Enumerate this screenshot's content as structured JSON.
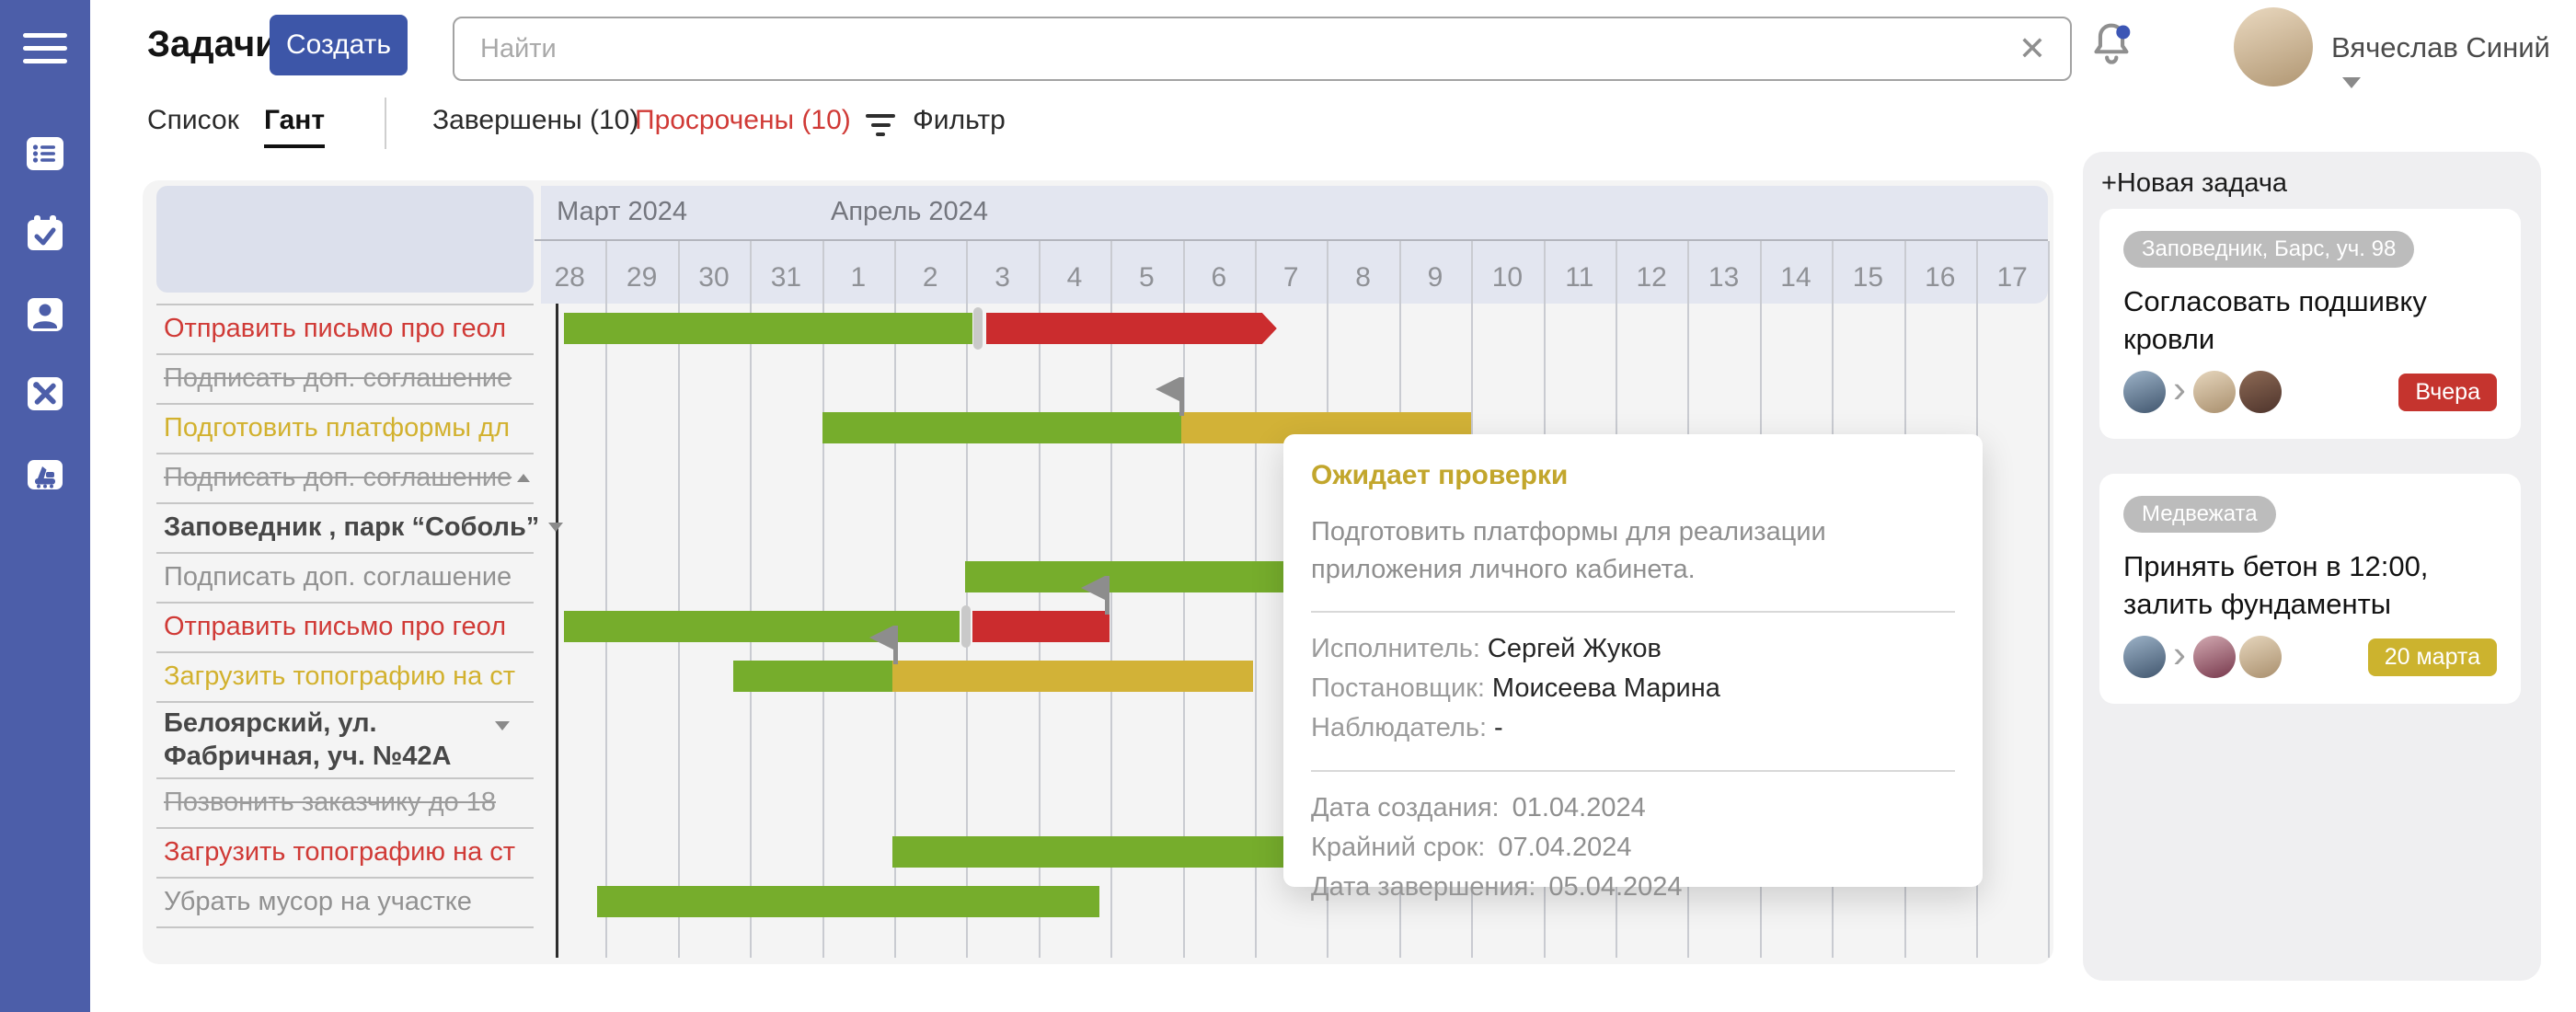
{
  "colors": {
    "sidebar_blue": "#4c5ea9",
    "accent_blue": "#3d56a8",
    "bar_green": "#76ad2c",
    "bar_red": "#cb2c2e",
    "bar_yellow": "#d2b237",
    "overdue_text": "#d03a36",
    "review_text": "#d2b12e",
    "badge_red": "#c5342e",
    "badge_yellow": "#ccb32e"
  },
  "sidebar": {
    "icons": [
      "menu",
      "task-list",
      "calendar-check",
      "contacts",
      "tools",
      "equipment"
    ]
  },
  "topbar": {
    "title": "Задачи",
    "create_label": "Создать",
    "search_placeholder": "Найти",
    "clear_icon": "✕",
    "user_name": "Вячеслав Синий",
    "notifications_unread": true
  },
  "tabs": {
    "list": "Список",
    "gantt": "Гант",
    "completed": "Завершены (10)",
    "overdue": "Просрочены (10)",
    "filter": "Фильтр"
  },
  "gantt": {
    "months": [
      {
        "label": "Март 2024",
        "day_index": 0.32
      },
      {
        "label": "Апрель 2024",
        "day_index": 4.12
      }
    ],
    "days": [
      "28",
      "29",
      "30",
      "31",
      "1",
      "2",
      "3",
      "4",
      "5",
      "6",
      "7",
      "8",
      "9",
      "10",
      "11",
      "12",
      "13",
      "14",
      "15",
      "16",
      "17"
    ],
    "rows": [
      {
        "label": "Отправить письмо про геол",
        "label_style": "overdue",
        "bars": [
          {
            "type": "green",
            "from": 0.42,
            "to": 6.08
          },
          {
            "type": "red",
            "from": 6.27,
            "to": 10.1,
            "arrow": true
          }
        ],
        "tick": 6.1
      },
      {
        "label": "Подписать доп. соглашение",
        "label_style": "done"
      },
      {
        "label": "Подготовить платформы дл",
        "label_style": "review",
        "bars": [
          {
            "type": "green",
            "from": 4.0,
            "to": 8.98
          },
          {
            "type": "yellow",
            "from": 8.98,
            "to": 13.0
          }
        ],
        "flag": 9.02
      },
      {
        "label": "Подписать доп. соглашение",
        "label_style": "done",
        "caret": "up"
      },
      {
        "label": "Заповедник , парк “Соболь”",
        "label_style": "group",
        "caret": "down"
      },
      {
        "label": "Подписать доп. соглашение",
        "label_style": "plain",
        "bars": [
          {
            "type": "green",
            "from": 5.98,
            "to": 11.6
          }
        ]
      },
      {
        "label": "Отправить письмо про геол",
        "label_style": "overdue",
        "bars": [
          {
            "type": "green",
            "from": 0.42,
            "to": 5.9
          },
          {
            "type": "red",
            "from": 6.08,
            "to": 7.98
          }
        ],
        "tick": 5.93,
        "flag": 7.98
      },
      {
        "label": "Загрузить топографию на ст",
        "label_style": "review",
        "bars": [
          {
            "type": "green",
            "from": 2.77,
            "to": 4.98
          },
          {
            "type": "yellow",
            "from": 4.98,
            "to": 9.98
          }
        ],
        "flag": 5.05
      },
      {
        "label": "Белоярский, ул. Фабричная, уч. №42А",
        "label_style": "group",
        "caret": "down",
        "tall": true
      },
      {
        "label": "Позвонить заказчику до 18",
        "label_style": "done"
      },
      {
        "label": "Загрузить топографию на ст",
        "label_style": "overdue",
        "bars": [
          {
            "type": "green",
            "from": 4.98,
            "to": 12.4
          }
        ]
      },
      {
        "label": "Убрать мусор на участке",
        "label_style": "plain",
        "bars": [
          {
            "type": "green",
            "from": 0.88,
            "to": 7.85
          }
        ]
      }
    ]
  },
  "tooltip": {
    "status": "Ожидает проверки",
    "description": "Подготовить платформы для реализации приложения личного кабинета.",
    "people": [
      {
        "label": "Исполнитель:",
        "value": "Сергей Жуков"
      },
      {
        "label": "Постановщик:",
        "value": "Моисеева Марина"
      },
      {
        "label": "Наблюдатель:",
        "value": "-"
      }
    ],
    "dates": [
      {
        "label": "Дата создания:",
        "value": "01.04.2024"
      },
      {
        "label": "Крайний срок:",
        "value": "07.04.2024"
      },
      {
        "label": "Дата завершения:",
        "value": "05.04.2024"
      }
    ]
  },
  "panel": {
    "new_task_label": "+Новая задача",
    "cards": [
      {
        "tag": "Заповедник, Барс, уч. 98",
        "title": "Согласовать подшивку кровли",
        "due": "Вчера",
        "due_style": "red",
        "avatars": [
          "man-blue",
          "man-beige",
          "man-brown"
        ]
      },
      {
        "tag": "Медвежата",
        "title": "Принять бетон в 12:00, залить фундаменты",
        "due": "20 марта",
        "due_style": "yellow",
        "avatars": [
          "man-blue",
          "woman-maroon",
          "man-beige"
        ]
      }
    ]
  }
}
